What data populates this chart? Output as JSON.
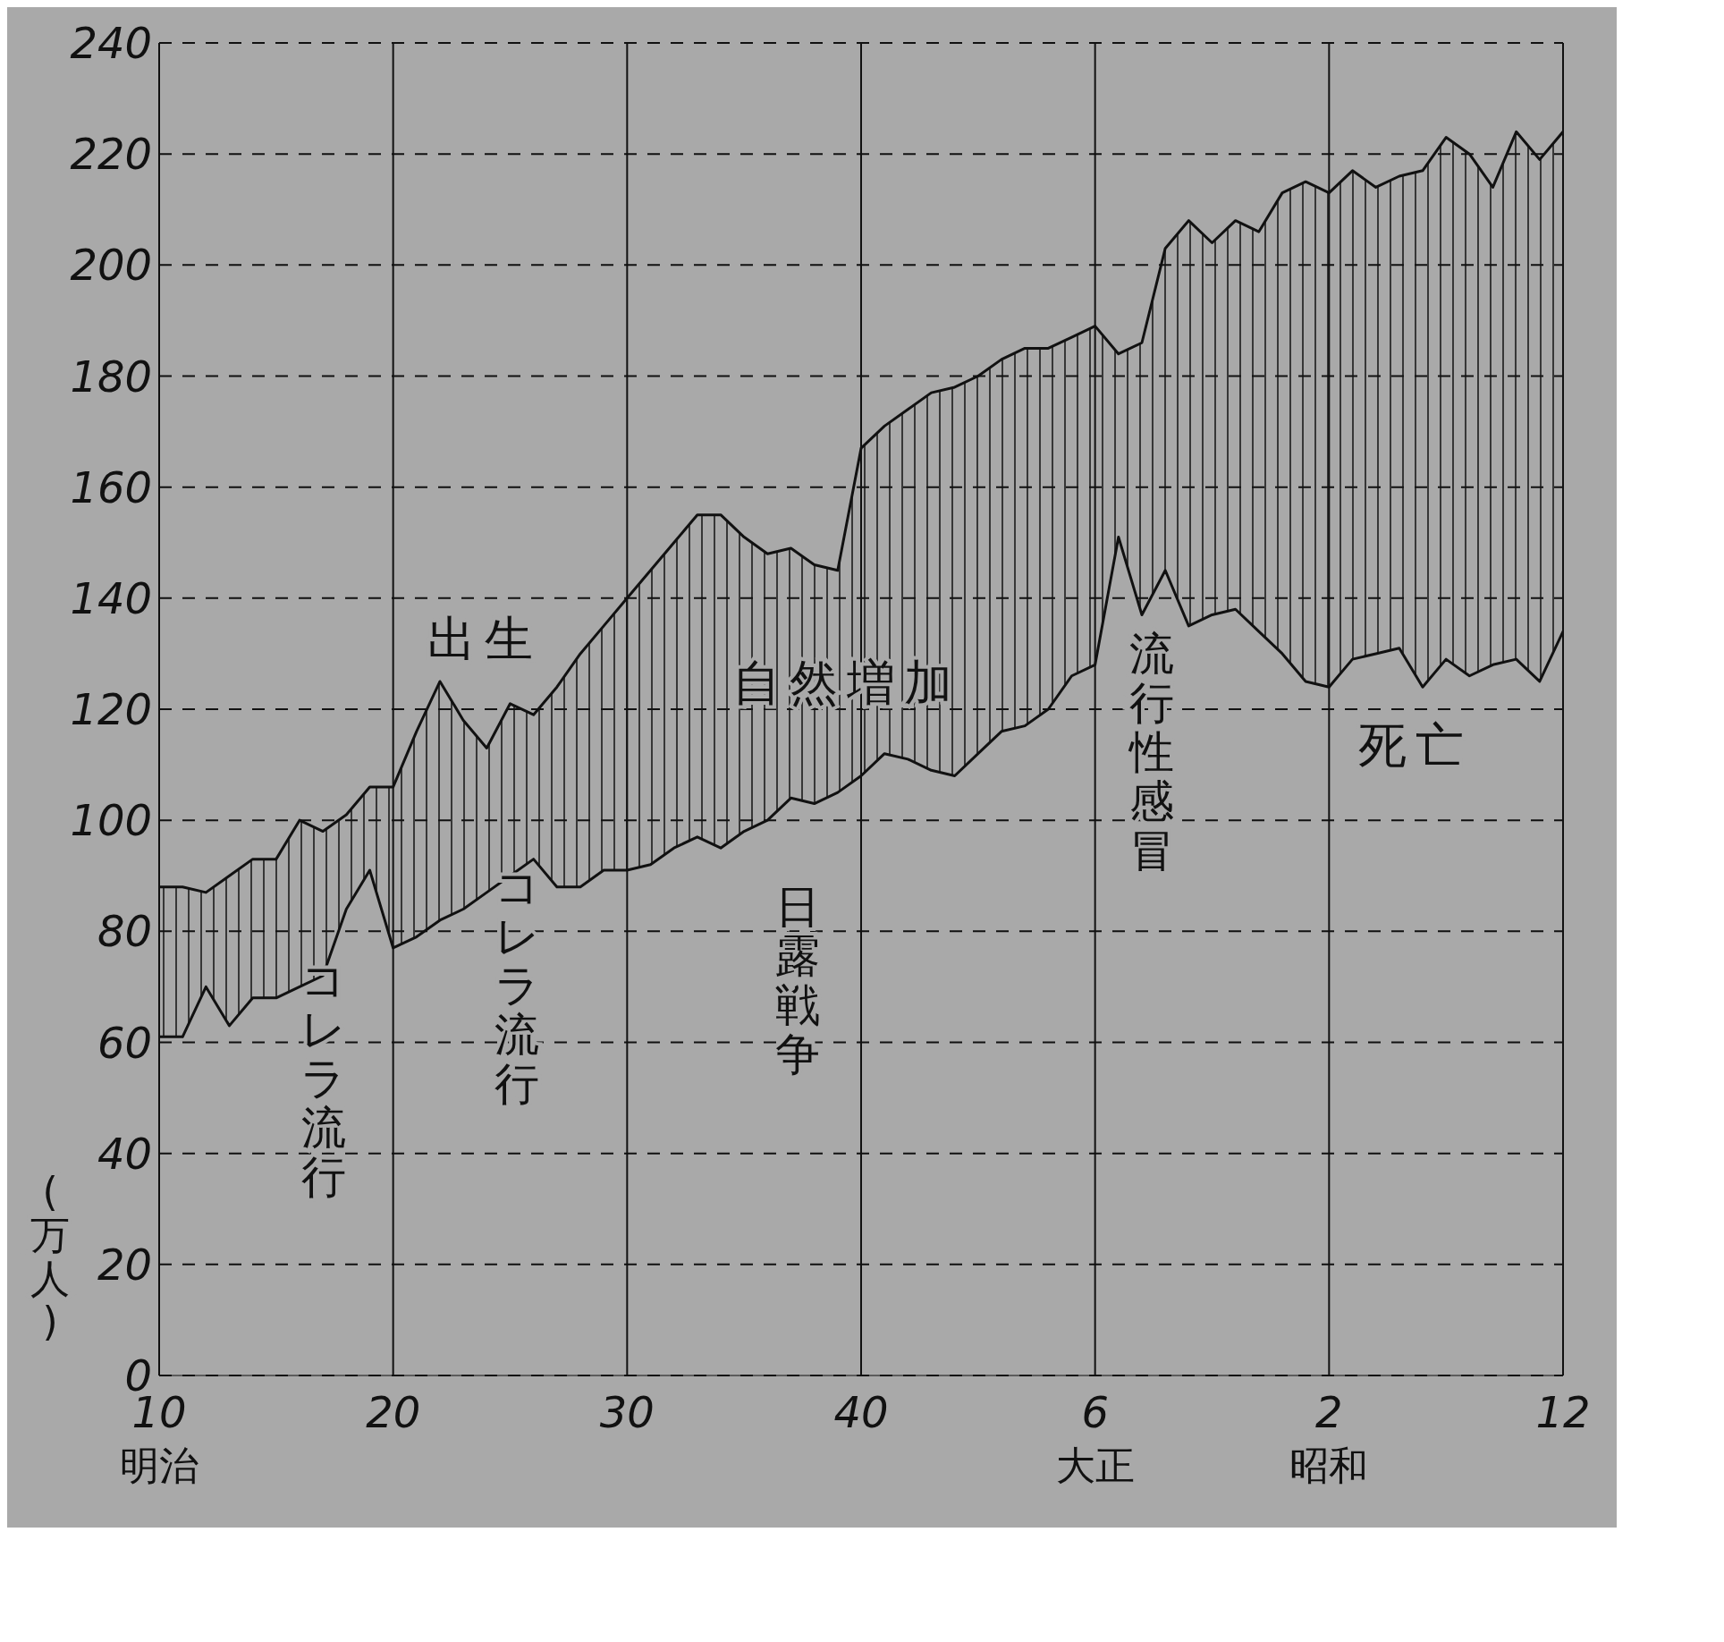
{
  "chart_data": {
    "type": "line",
    "ylabel": "(万人)",
    "categories": [
      "10\n明治",
      null,
      null,
      null,
      null,
      null,
      null,
      null,
      null,
      null,
      "20",
      null,
      null,
      null,
      null,
      null,
      null,
      null,
      null,
      null,
      "30",
      null,
      null,
      null,
      null,
      null,
      null,
      null,
      null,
      null,
      "40",
      null,
      null,
      null,
      null,
      null,
      null,
      null,
      null,
      null,
      "6\n大正",
      null,
      null,
      null,
      null,
      null,
      null,
      null,
      null,
      null,
      "2\n昭和",
      null,
      null,
      null,
      null,
      null,
      null,
      null,
      null,
      null,
      "12"
    ],
    "series": [
      {
        "color": "#111111",
        "values": [
          88,
          88,
          87,
          90,
          93,
          93,
          100,
          98,
          101,
          106,
          106,
          116,
          125,
          118,
          113,
          121,
          119,
          124,
          130,
          135,
          140,
          145,
          150,
          155,
          155,
          151,
          148,
          149,
          146,
          145,
          167,
          171,
          174,
          177,
          178,
          180,
          183,
          185,
          185,
          187,
          189,
          184,
          186,
          203,
          208,
          204,
          208,
          206,
          213,
          215,
          213,
          217,
          214,
          216,
          217,
          223,
          220,
          214,
          224,
          219,
          224
        ],
        "lower": [
          61,
          61,
          70,
          63,
          68,
          68,
          70,
          72,
          84,
          91,
          77,
          79,
          82,
          84,
          87,
          90,
          93,
          88,
          88,
          91,
          91,
          92,
          95,
          97,
          95,
          98,
          100,
          104,
          103,
          105,
          108,
          112,
          111,
          109,
          108,
          112,
          116,
          117,
          120,
          126,
          128,
          151,
          137,
          145,
          135,
          137,
          138,
          134,
          130,
          125,
          124,
          129,
          130,
          131,
          124,
          129,
          126,
          128,
          129,
          125,
          134
        ],
        "upper": [
          88,
          88,
          87,
          90,
          93,
          93,
          100,
          98,
          101,
          106,
          106,
          116,
          125,
          118,
          113,
          121,
          119,
          124,
          130,
          135,
          140,
          145,
          150,
          155,
          155,
          151,
          148,
          149,
          146,
          145,
          167,
          171,
          174,
          177,
          178,
          180,
          183,
          185,
          185,
          187,
          189,
          184,
          186,
          203,
          208,
          204,
          208,
          206,
          213,
          215,
          213,
          217,
          214,
          216,
          217,
          223,
          220,
          214,
          224,
          219,
          224
        ]
      },
      {
        "color": "#111111",
        "values": [
          61,
          61,
          70,
          63,
          68,
          68,
          70,
          72,
          84,
          91,
          77,
          79,
          82,
          84,
          87,
          90,
          93,
          88,
          88,
          91,
          91,
          92,
          95,
          97,
          95,
          98,
          100,
          104,
          103,
          105,
          108,
          112,
          111,
          109,
          108,
          112,
          116,
          117,
          120,
          126,
          128,
          151,
          137,
          145,
          135,
          137,
          138,
          134,
          130,
          125,
          124,
          129,
          130,
          131,
          124,
          129,
          126,
          128,
          129,
          125,
          134
        ]
      }
    ],
    "ylim": [
      0,
      240
    ],
    "yticks": [
      0,
      20,
      40,
      60,
      80,
      100,
      120,
      140,
      160,
      180,
      200,
      220,
      240
    ],
    "grid": true,
    "line_style": "solid",
    "annotations": [
      "出生",
      "自然増加",
      "死亡",
      "コレラ流行",
      "コレラ流行",
      "日露戦争",
      "流行性感冒"
    ]
  }
}
